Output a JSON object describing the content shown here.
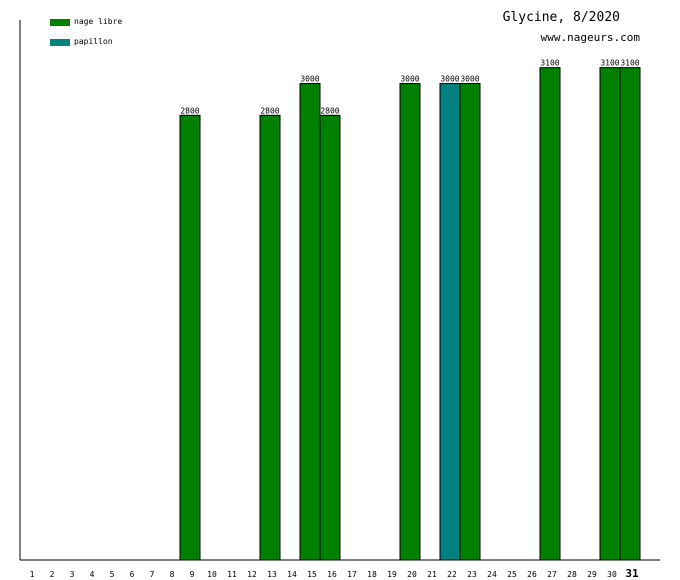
{
  "chart_data": {
    "type": "bar",
    "title": "Glycine, 8/2020",
    "subtitle": "www.nageurs.com",
    "categories": [
      "1",
      "2",
      "3",
      "4",
      "5",
      "6",
      "7",
      "8",
      "9",
      "10",
      "11",
      "12",
      "13",
      "14",
      "15",
      "16",
      "17",
      "18",
      "19",
      "20",
      "21",
      "22",
      "23",
      "24",
      "25",
      "26",
      "27",
      "28",
      "29",
      "30",
      "31"
    ],
    "highlight_category": "31",
    "ylim": [
      0,
      3400
    ],
    "legend_position": "top-left",
    "grid": false,
    "series": [
      {
        "name": "nage libre",
        "color": "#008000",
        "points": [
          {
            "day": "9",
            "value": 2800
          },
          {
            "day": "13",
            "value": 2800
          },
          {
            "day": "15",
            "value": 3000
          },
          {
            "day": "16",
            "value": 2800
          },
          {
            "day": "20",
            "value": 3000
          },
          {
            "day": "23",
            "value": 3000
          },
          {
            "day": "27",
            "value": 3100
          },
          {
            "day": "30",
            "value": 3100
          },
          {
            "day": "31",
            "value": 3100
          }
        ]
      },
      {
        "name": "papillon",
        "color": "#008080",
        "points": [
          {
            "day": "22",
            "value": 3000
          }
        ]
      }
    ]
  }
}
